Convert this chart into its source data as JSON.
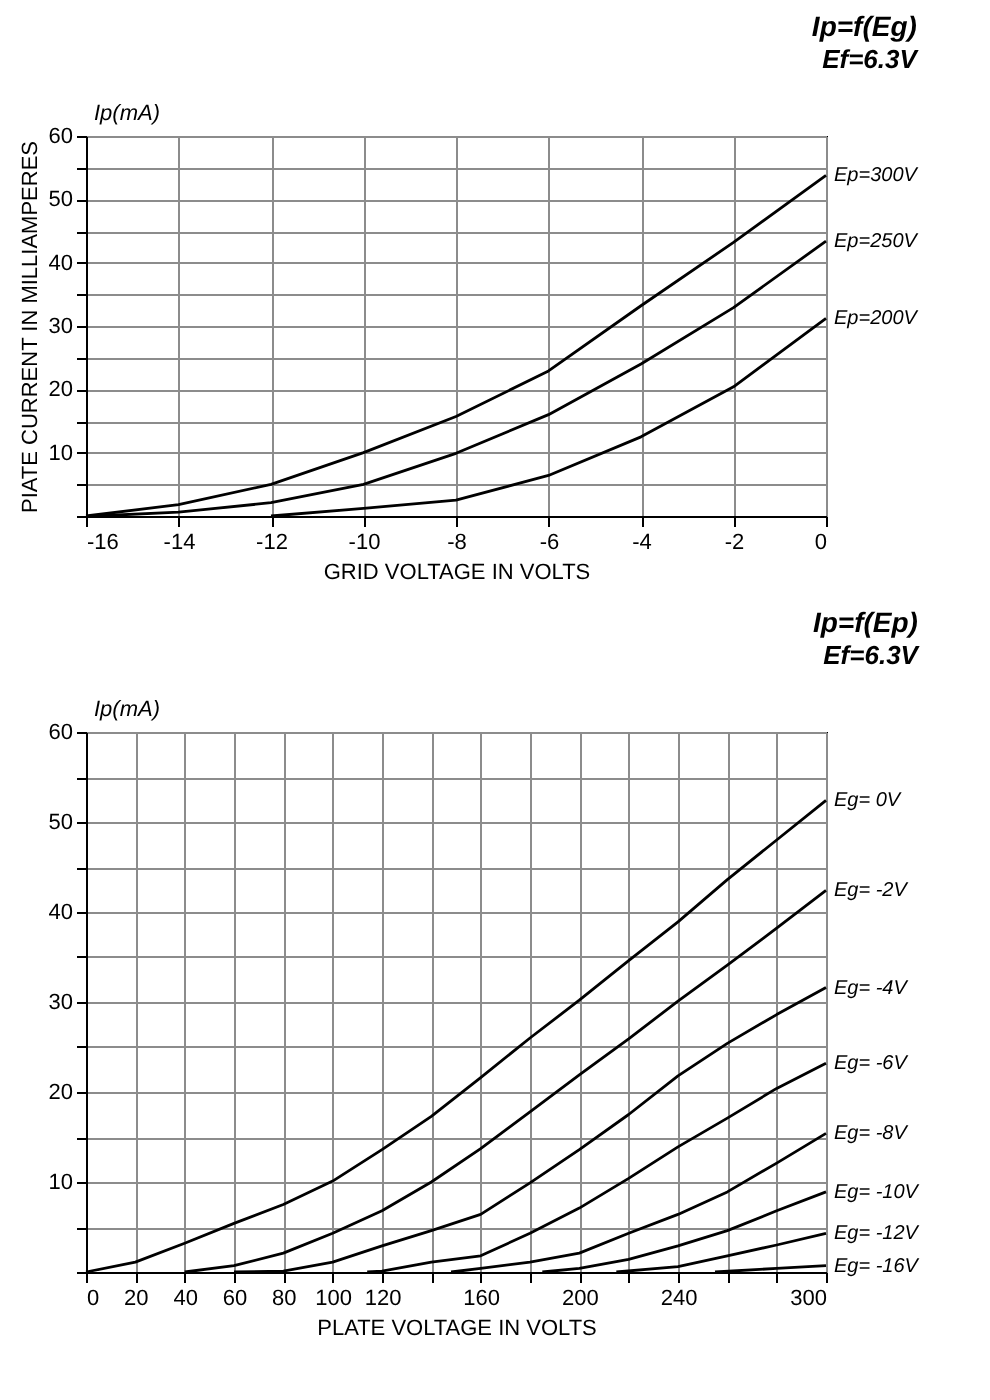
{
  "chart_data": [
    {
      "type": "line",
      "title": "Ip=f(Eg)",
      "subtitle": "Ef=6.3V",
      "xlabel": "GRID VOLTAGE IN VOLTS",
      "ylabel": "PIATE CURRENT IN MILLIAMPERES",
      "annotations": [
        "Ip(mA)"
      ],
      "xlim": [
        -16,
        0
      ],
      "xticks": [
        -16,
        -14,
        -12,
        -10,
        -8,
        -6,
        -4,
        -2,
        0
      ],
      "ylim": [
        0,
        60
      ],
      "yticks": [
        {
          "value": 0,
          "label": null
        },
        {
          "value": 5,
          "label": null
        },
        10,
        {
          "value": 15,
          "label": null
        },
        20,
        {
          "value": 25,
          "label": null
        },
        30,
        {
          "value": 35,
          "label": null
        },
        40,
        {
          "value": 45,
          "label": null
        },
        50,
        {
          "value": 55,
          "label": null
        },
        60
      ],
      "grid": true,
      "marker": "none",
      "line_style": "solid",
      "series": [
        {
          "name": "Ep=200V",
          "color": "#000000",
          "x": [
            -12,
            -10,
            -8,
            -6,
            -4,
            -2,
            0
          ],
          "values": [
            0,
            1.2,
            2.5,
            6.4,
            12.5,
            20.4,
            31.2
          ]
        },
        {
          "name": "Ep=250V",
          "color": "#000000",
          "x": [
            -15.8,
            -14,
            -12,
            -10,
            -8,
            -6,
            -4,
            -2,
            0
          ],
          "values": [
            0,
            0.6,
            2.1,
            5,
            9.9,
            16,
            24,
            32.9,
            43.4
          ]
        },
        {
          "name": "Ep=300V",
          "color": "#000000",
          "x": [
            -16,
            -14,
            -12,
            -10,
            -8,
            -6,
            -4,
            -2,
            0
          ],
          "values": [
            0,
            1.8,
            5,
            10,
            15.7,
            22.9,
            33.2,
            43.2,
            53.8
          ]
        }
      ]
    },
    {
      "type": "line",
      "title": "Ip=f(Ep)",
      "subtitle": "Ef=6.3V",
      "xlabel": "PLATE VOLTAGE IN VOLTS",
      "annotations": [
        "Ip(mA)"
      ],
      "xlim": [
        0,
        300
      ],
      "xticks": [
        0,
        20,
        40,
        60,
        80,
        100,
        120,
        {
          "value": 140,
          "label": null
        },
        160,
        {
          "value": 180,
          "label": null
        },
        200,
        {
          "value": 220,
          "label": null
        },
        240,
        {
          "value": 260,
          "label": null
        },
        {
          "value": 280,
          "label": null
        },
        300
      ],
      "ylim": [
        0,
        60
      ],
      "yticks": [
        {
          "value": 0,
          "label": null
        },
        {
          "value": 5,
          "label": null
        },
        10,
        {
          "value": 15,
          "label": null
        },
        20,
        {
          "value": 25,
          "label": null
        },
        30,
        {
          "value": 35,
          "label": null
        },
        40,
        {
          "value": 45,
          "label": null
        },
        50,
        {
          "value": 55,
          "label": null
        },
        60
      ],
      "grid": true,
      "marker": "none",
      "line_style": "solid",
      "series": [
        {
          "name": "Eg= 0V",
          "color": "#000000",
          "x": [
            0,
            20,
            40,
            60,
            80,
            100,
            120,
            140,
            160,
            180,
            200,
            220,
            240,
            260,
            280,
            300
          ],
          "values": [
            0,
            1.1,
            3.2,
            5.4,
            7.5,
            10.1,
            13.6,
            17.3,
            21.6,
            26,
            30.2,
            34.6,
            38.9,
            43.6,
            48,
            52.4
          ]
        },
        {
          "name": "Eg= -2V",
          "color": "#000000",
          "x": [
            40,
            60,
            80,
            100,
            120,
            140,
            160,
            180,
            200,
            220,
            240,
            260,
            280,
            300
          ],
          "values": [
            0,
            0.7,
            2.1,
            4.3,
            6.8,
            10,
            13.7,
            17.8,
            21.9,
            25.9,
            30.1,
            34.1,
            38.2,
            42.4
          ]
        },
        {
          "name": "Eg= -4V",
          "color": "#000000",
          "x": [
            60,
            80,
            100,
            120,
            140,
            160,
            180,
            200,
            220,
            240,
            260,
            280,
            300
          ],
          "values": [
            0,
            0.1,
            1.1,
            2.9,
            4.6,
            6.4,
            9.9,
            13.6,
            17.5,
            21.8,
            25.4,
            28.6,
            31.6
          ]
        },
        {
          "name": "Eg= -6V",
          "color": "#000000",
          "x": [
            114,
            120,
            140,
            160,
            180,
            200,
            220,
            240,
            260,
            280,
            300
          ],
          "values": [
            0,
            0.1,
            1.1,
            1.8,
            4.3,
            7.1,
            10.4,
            13.9,
            17.1,
            20.4,
            23.2
          ]
        },
        {
          "name": "Eg= -8V",
          "color": "#000000",
          "x": [
            148,
            160,
            180,
            200,
            220,
            240,
            260,
            280,
            300
          ],
          "values": [
            0,
            0.4,
            1.1,
            2.1,
            4.3,
            6.4,
            8.9,
            12.1,
            15.4
          ]
        },
        {
          "name": "Eg= -10V",
          "color": "#000000",
          "x": [
            185,
            200,
            220,
            240,
            260,
            280,
            300
          ],
          "values": [
            0,
            0.4,
            1.4,
            2.9,
            4.6,
            6.8,
            8.9
          ]
        },
        {
          "name": "Eg= -12V",
          "color": "#000000",
          "x": [
            215,
            240,
            260,
            280,
            300
          ],
          "values": [
            0,
            0.6,
            1.8,
            3,
            4.3
          ]
        },
        {
          "name": "Eg= -16V",
          "color": "#000000",
          "x": [
            255,
            280,
            300
          ],
          "values": [
            0,
            0.4,
            0.7
          ]
        }
      ]
    }
  ]
}
